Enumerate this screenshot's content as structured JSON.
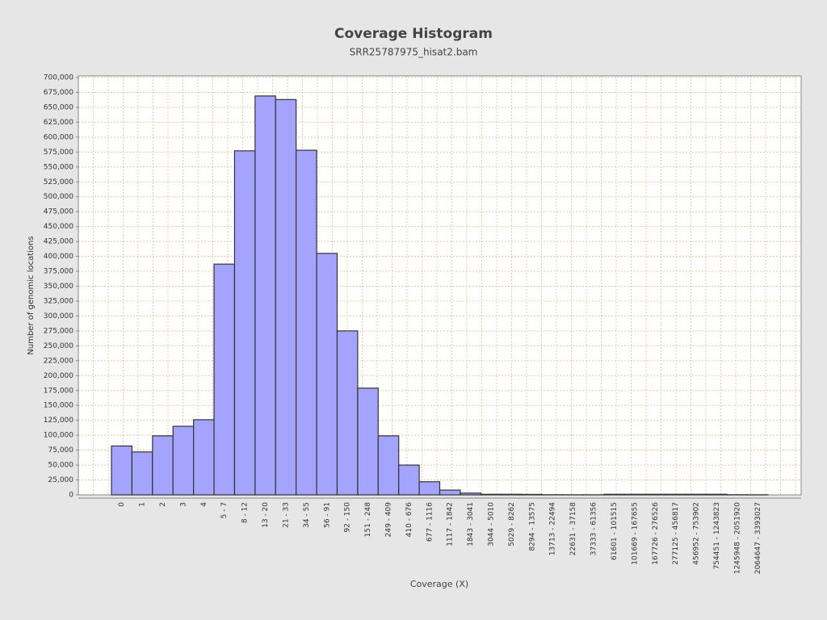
{
  "chart_data": {
    "type": "bar",
    "title": "Coverage Histogram",
    "subtitle": "SRR25787975_hisat2.bam",
    "x_label": "Coverage (X)",
    "y_label": "Number of genomic locations",
    "categories": [
      "0",
      "1",
      "2",
      "3",
      "4",
      "5 - 7",
      "8 - 12",
      "13 - 20",
      "21 - 33",
      "34 - 55",
      "56 - 91",
      "92 - 150",
      "151 - 248",
      "249 - 409",
      "410 - 676",
      "677 - 1116",
      "1117 - 1842",
      "1843 - 3041",
      "3044 - 5010",
      "5029 - 8262",
      "8294 - 13575",
      "13713 - 22494",
      "22631 - 37158",
      "37333 - 61356",
      "61601 - 101515",
      "101669 - 167655",
      "167726 - 276526",
      "277125 - 456817",
      "456952 - 753902",
      "754451 - 1243823",
      "1245948 - 2051920",
      "2064647 - 3393027"
    ],
    "values": [
      82000,
      72000,
      99000,
      115000,
      126000,
      387000,
      577000,
      669000,
      663000,
      578000,
      405000,
      275000,
      179000,
      99000,
      50000,
      22000,
      8000,
      3000,
      1000,
      1000,
      800,
      300,
      200,
      200,
      1000,
      1000,
      1000,
      1000,
      1000,
      1000,
      300,
      200
    ],
    "color": "#a4a4ff",
    "ylim": [
      0,
      700000
    ],
    "yticks": [
      0,
      {
        "value": 25000,
        "label": "25,000"
      },
      {
        "value": 50000,
        "label": "50,000"
      },
      {
        "value": 75000,
        "label": "75,000"
      },
      {
        "value": 100000,
        "label": "100,000"
      },
      {
        "value": 125000,
        "label": "125,000"
      },
      {
        "value": 150000,
        "label": "150,000"
      },
      {
        "value": 175000,
        "label": "175,000"
      },
      {
        "value": 200000,
        "label": "200,000"
      },
      {
        "value": 225000,
        "label": "225,000"
      },
      {
        "value": 250000,
        "label": "250,000"
      },
      {
        "value": 275000,
        "label": "275,000"
      },
      {
        "value": 300000,
        "label": "300,000"
      },
      {
        "value": 325000,
        "label": "325,000"
      },
      {
        "value": 350000,
        "label": "350,000"
      },
      {
        "value": 375000,
        "label": "375,000"
      },
      {
        "value": 400000,
        "label": "400,000"
      },
      {
        "value": 425000,
        "label": "425,000"
      },
      {
        "value": 450000,
        "label": "450,000"
      },
      {
        "value": 475000,
        "label": "475,000"
      },
      {
        "value": 500000,
        "label": "500,000"
      },
      {
        "value": 525000,
        "label": "525,000"
      },
      {
        "value": 550000,
        "label": "550,000"
      },
      {
        "value": 575000,
        "label": "575,000"
      },
      {
        "value": 600000,
        "label": "600,000"
      },
      {
        "value": 625000,
        "label": "625,000"
      },
      {
        "value": 650000,
        "label": "650,000"
      },
      {
        "value": 675000,
        "label": "675,000"
      },
      {
        "value": 700000,
        "label": "700,000"
      }
    ],
    "grid": true
  }
}
